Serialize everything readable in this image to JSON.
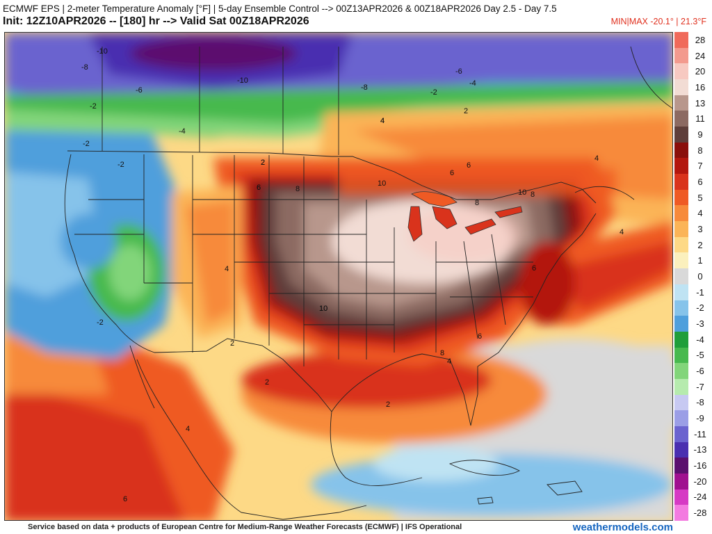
{
  "header": {
    "title_line1": "ECMWF EPS | 2-meter Temperature Anomaly [°F] | 5-day Ensemble Control --> 00Z13APR2026 & 00Z18APR2026   Day 2.5 - Day 7.5",
    "title_line2": "Init: 12Z10APR2026 -- [180] hr --> Valid Sat 00Z18APR2026",
    "minmax": "MIN|MAX -20.1° | 21.3°F"
  },
  "colorbar": {
    "levels": [
      {
        "label": "28",
        "color": "#f06a5a"
      },
      {
        "label": "24",
        "color": "#f39a8e"
      },
      {
        "label": "20",
        "color": "#f7c9c1"
      },
      {
        "label": "16",
        "color": "#f2dcd4"
      },
      {
        "label": "13",
        "color": "#b8978c"
      },
      {
        "label": "11",
        "color": "#8c6a62"
      },
      {
        "label": "9",
        "color": "#5e3e3a"
      },
      {
        "label": "8",
        "color": "#8a0f0b"
      },
      {
        "label": "7",
        "color": "#b3170e"
      },
      {
        "label": "6",
        "color": "#d9331c"
      },
      {
        "label": "5",
        "color": "#ef5a24"
      },
      {
        "label": "4",
        "color": "#f78a3a"
      },
      {
        "label": "3",
        "color": "#fbb457"
      },
      {
        "label": "2",
        "color": "#fdd986"
      },
      {
        "label": "1",
        "color": "#fbf0bd"
      },
      {
        "label": "0",
        "color": "#d9d9d9"
      },
      {
        "label": "-1",
        "color": "#bfe3f3"
      },
      {
        "label": "-2",
        "color": "#86c3ea"
      },
      {
        "label": "-3",
        "color": "#4f9fdc"
      },
      {
        "label": "-4",
        "color": "#1f9e3a"
      },
      {
        "label": "-5",
        "color": "#47b94e"
      },
      {
        "label": "-6",
        "color": "#82d57a"
      },
      {
        "label": "-7",
        "color": "#b6ebae"
      },
      {
        "label": "-8",
        "color": "#c7c9f2"
      },
      {
        "label": "-9",
        "color": "#9b9ee6"
      },
      {
        "label": "-11",
        "color": "#6b63cf"
      },
      {
        "label": "-13",
        "color": "#4a2fb0"
      },
      {
        "label": "-16",
        "color": "#5b0f6e"
      },
      {
        "label": "-20",
        "color": "#a0108f"
      },
      {
        "label": "-24",
        "color": "#d63ac4"
      },
      {
        "label": "-28",
        "color": "#f37be0"
      }
    ]
  },
  "map": {
    "contour_labels": [
      "-10",
      "-8",
      "-6",
      "-2",
      "-4",
      "-10",
      "-8",
      "-6",
      "-2",
      "-2",
      "-2",
      "-2",
      "-4",
      "4",
      "6",
      "2",
      "8",
      "6",
      "4",
      "4",
      "6",
      "10",
      "10",
      "8",
      "10",
      "8",
      "6",
      "2",
      "2",
      "10",
      "4",
      "6",
      "4",
      "6",
      "8",
      "4",
      "2",
      "2",
      "4",
      "6",
      "2"
    ]
  },
  "footer": {
    "text": "Service based on data + products of European Centre for Medium-Range Weather Forecasts (ECMWF) | IFS Operational",
    "brand": "weathermodels.com"
  }
}
